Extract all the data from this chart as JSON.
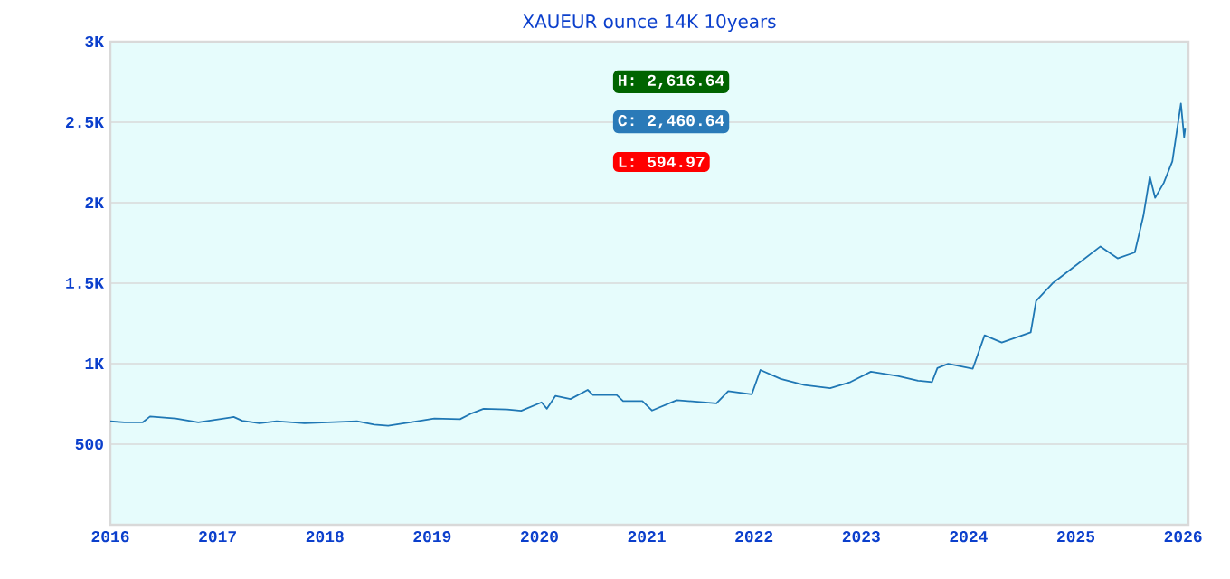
{
  "chart_data": {
    "type": "line",
    "title": "XAUEUR ounce 14K 10years",
    "annotations": [
      "H: 2,616.64",
      "C: 2,460.64",
      "L: 594.97"
    ],
    "series": [
      {
        "color": "#1f77b4",
        "x": [
          2016.0,
          2016.13,
          2016.3,
          2016.37,
          2016.61,
          2016.82,
          2017.15,
          2017.23,
          2017.39,
          2017.55,
          2017.81,
          2018.3,
          2018.46,
          2018.59,
          2018.89,
          2019.02,
          2019.26,
          2019.37,
          2019.48,
          2019.7,
          2019.83,
          2020.02,
          2020.07,
          2020.15,
          2020.29,
          2020.45,
          2020.5,
          2020.72,
          2020.78,
          2020.96,
          2021.05,
          2021.28,
          2021.65,
          2021.76,
          2021.98,
          2022.06,
          2022.25,
          2022.47,
          2022.71,
          2022.9,
          2023.09,
          2023.34,
          2023.53,
          2023.66,
          2023.71,
          2023.81,
          2024.04,
          2024.15,
          2024.31,
          2024.58,
          2024.63,
          2024.79,
          2025.01,
          2025.23,
          2025.39,
          2025.55,
          2025.63,
          2025.69,
          2025.74,
          2025.82,
          2025.9,
          2025.95,
          2025.98,
          2026.01,
          2026.02
        ],
        "values": [
          642,
          635,
          635,
          672,
          659,
          635,
          669,
          645,
          630,
          642,
          630,
          642,
          621,
          614,
          645,
          659,
          655,
          692,
          720,
          716,
          707,
          760,
          720,
          800,
          780,
          837,
          805,
          805,
          768,
          768,
          709,
          773,
          754,
          829,
          810,
          961,
          905,
          867,
          848,
          886,
          950,
          924,
          894,
          886,
          973,
          999,
          969,
          1176,
          1131,
          1195,
          1390,
          1503,
          1615,
          1728,
          1654,
          1691,
          1917,
          2162,
          2030,
          2123,
          2256,
          2481,
          2616,
          2406,
          2460
        ]
      }
    ],
    "xlim": [
      2016,
      2026.05
    ],
    "xticks": [
      2016,
      2017,
      2018,
      2019,
      2020,
      2021,
      2022,
      2023,
      2024,
      2025,
      2026
    ],
    "ylim": [
      0,
      3000
    ],
    "yticks": [
      {
        "value": 500,
        "label": "500"
      },
      {
        "value": 1000,
        "label": "1K"
      },
      {
        "value": 1500,
        "label": "1.5K"
      },
      {
        "value": 2000,
        "label": "2K"
      },
      {
        "value": 2500,
        "label": "2.5K"
      },
      {
        "value": 3000,
        "label": "3K"
      }
    ],
    "grid": "y",
    "marker": "none",
    "line_style": "solid"
  }
}
